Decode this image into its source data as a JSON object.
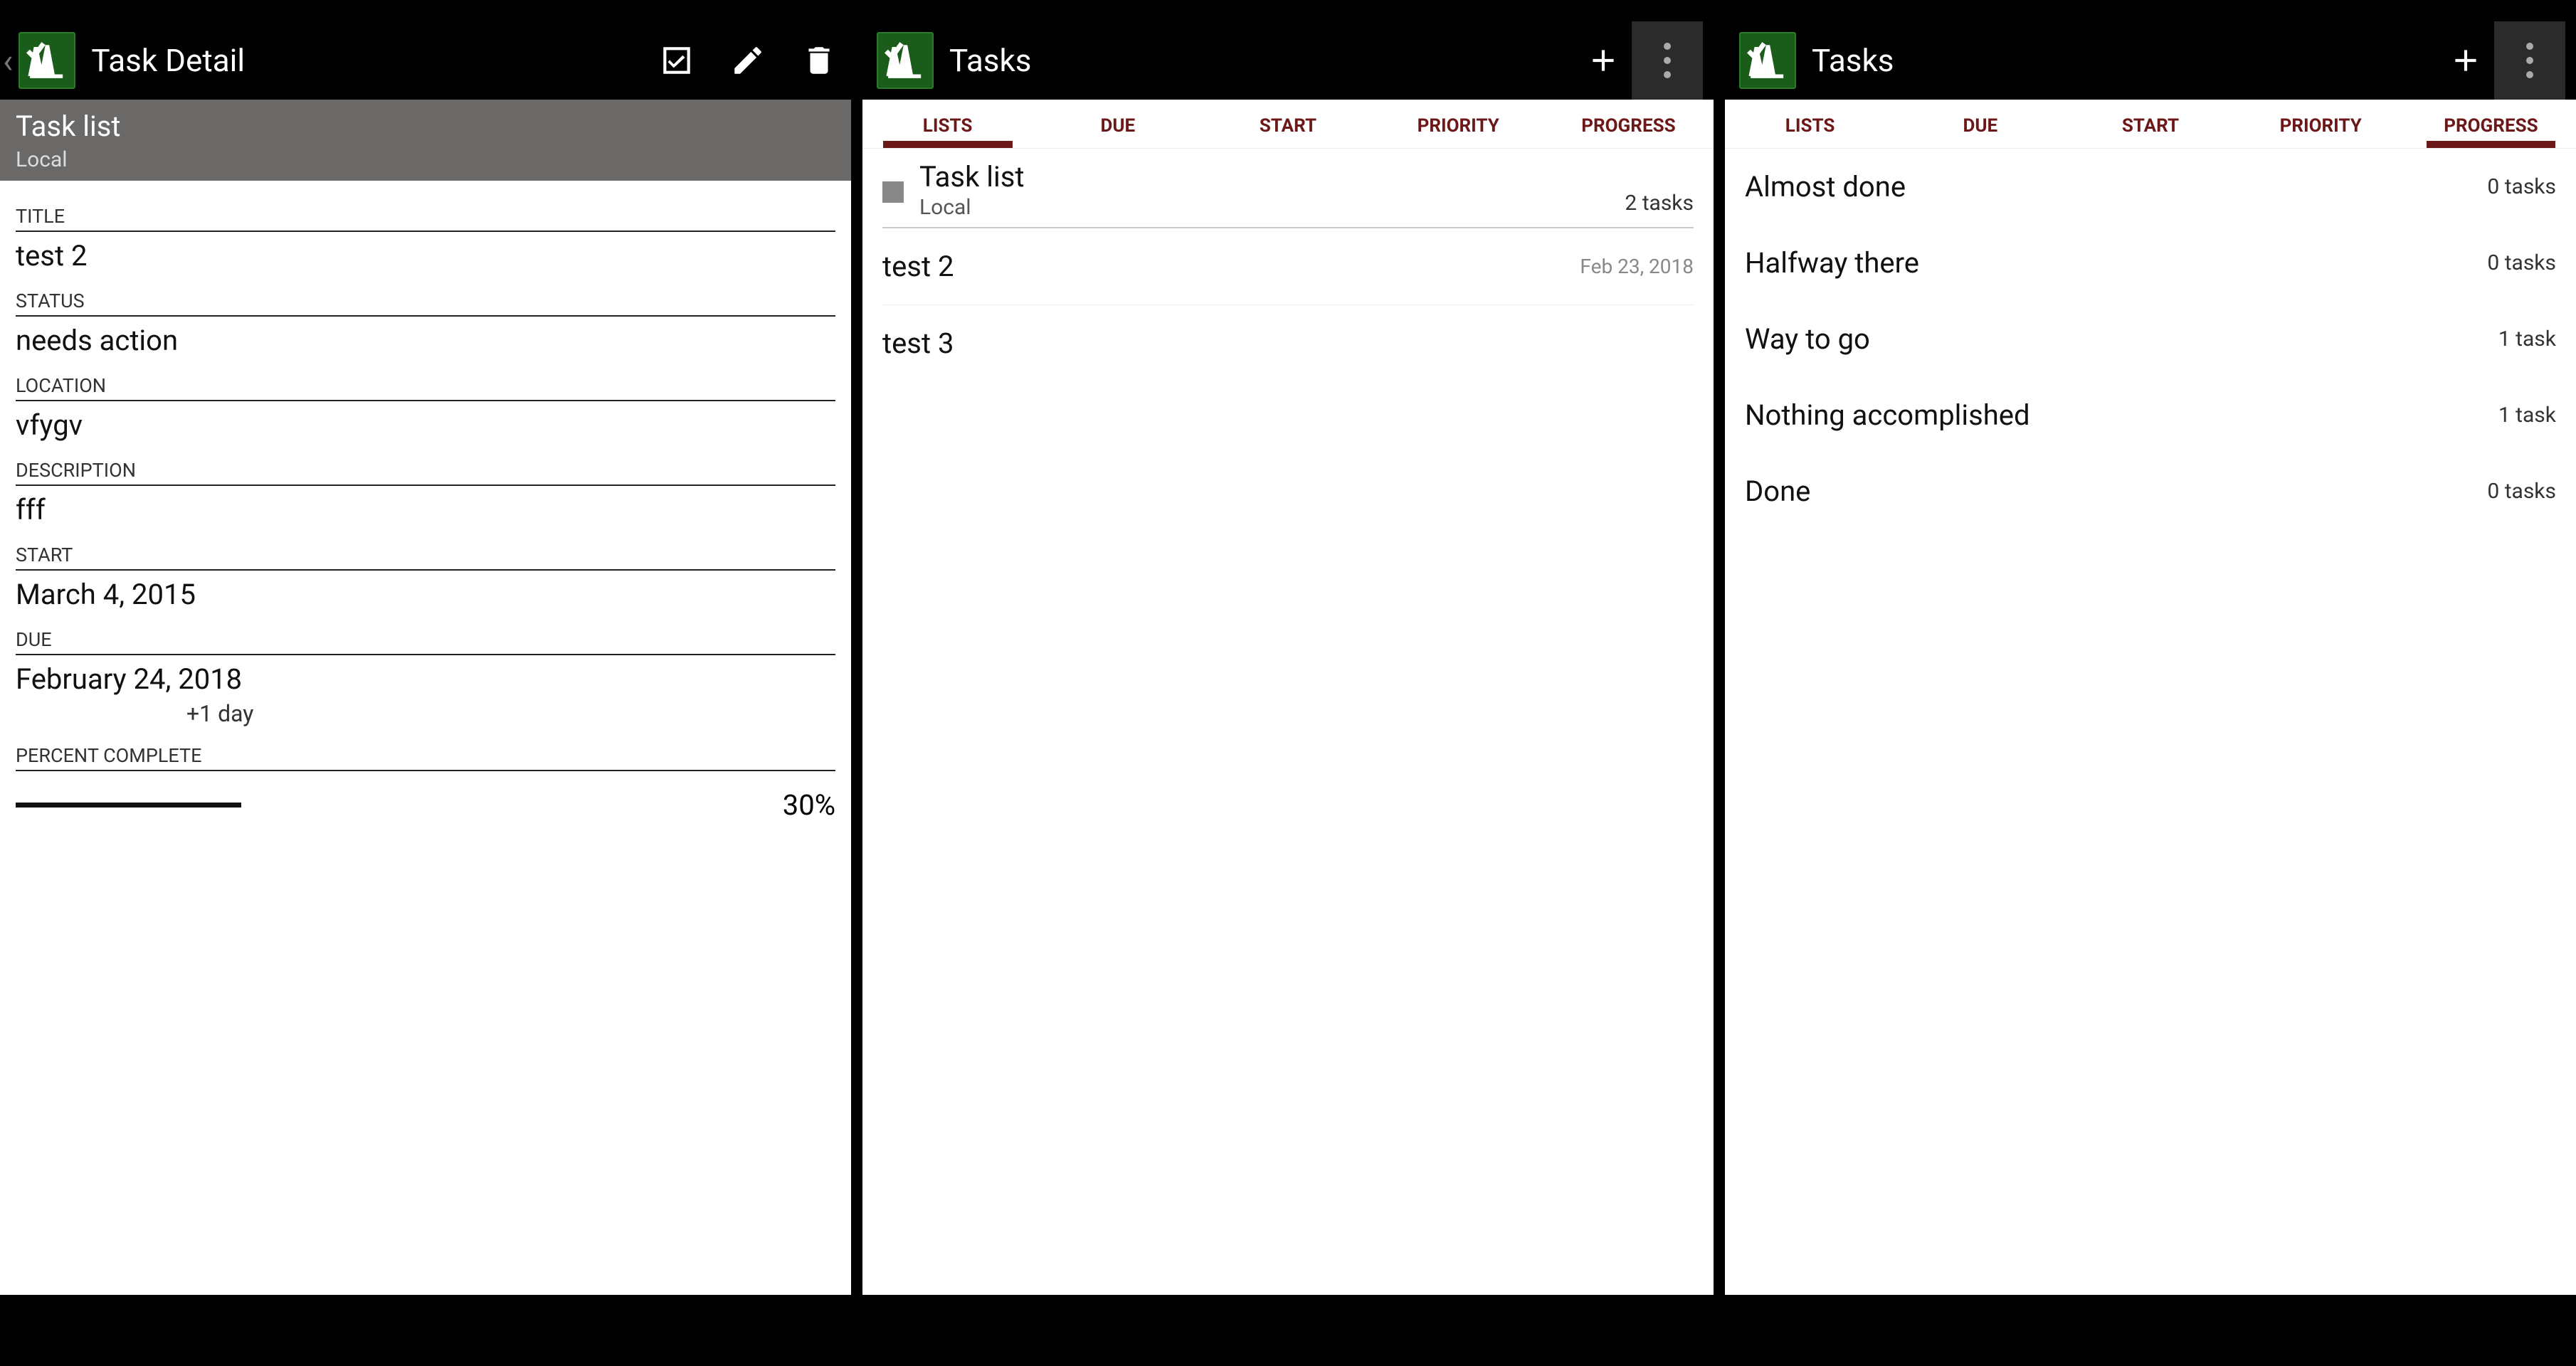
{
  "panel1": {
    "title": "Task Detail",
    "subheader": {
      "title": "Task list",
      "sub": "Local"
    },
    "fields": {
      "title": {
        "label": "TITLE",
        "value": "test 2"
      },
      "status": {
        "label": "STATUS",
        "value": "needs action"
      },
      "location": {
        "label": "LOCATION",
        "value": "vfygv"
      },
      "description": {
        "label": "DESCRIPTION",
        "value": "fff"
      },
      "start": {
        "label": "START",
        "value": "March 4, 2015"
      },
      "due": {
        "label": "DUE",
        "value": "February 24, 2018",
        "extra": "+1 day"
      },
      "percent": {
        "label": "PERCENT COMPLETE",
        "value": "30%",
        "fill_percent": 30
      }
    }
  },
  "panel2": {
    "title": "Tasks",
    "tabs": [
      "LISTS",
      "DUE",
      "START",
      "PRIORITY",
      "PROGRESS"
    ],
    "active_tab": 0,
    "list": {
      "name": "Task list",
      "sub": "Local",
      "count": "2 tasks"
    },
    "tasks": [
      {
        "name": "test 2",
        "date": "Feb 23, 2018"
      },
      {
        "name": "test 3",
        "date": ""
      }
    ]
  },
  "panel3": {
    "title": "Tasks",
    "tabs": [
      "LISTS",
      "DUE",
      "START",
      "PRIORITY",
      "PROGRESS"
    ],
    "active_tab": 4,
    "rows": [
      {
        "label": "Almost done",
        "count": "0 tasks"
      },
      {
        "label": "Halfway there",
        "count": "0 tasks"
      },
      {
        "label": "Way to go",
        "count": "1 task"
      },
      {
        "label": "Nothing accomplished",
        "count": "1 task"
      },
      {
        "label": "Done",
        "count": "0 tasks"
      }
    ]
  },
  "colors": {
    "background": "#000000",
    "panel_bg": "#ffffff",
    "actionbar_bg": "#000000",
    "subheader_bg": "#6b6868",
    "tab_color": "#6d1818",
    "overflow_bg": "#2b2b2b",
    "app_icon_bg": "#1a5c1a"
  }
}
